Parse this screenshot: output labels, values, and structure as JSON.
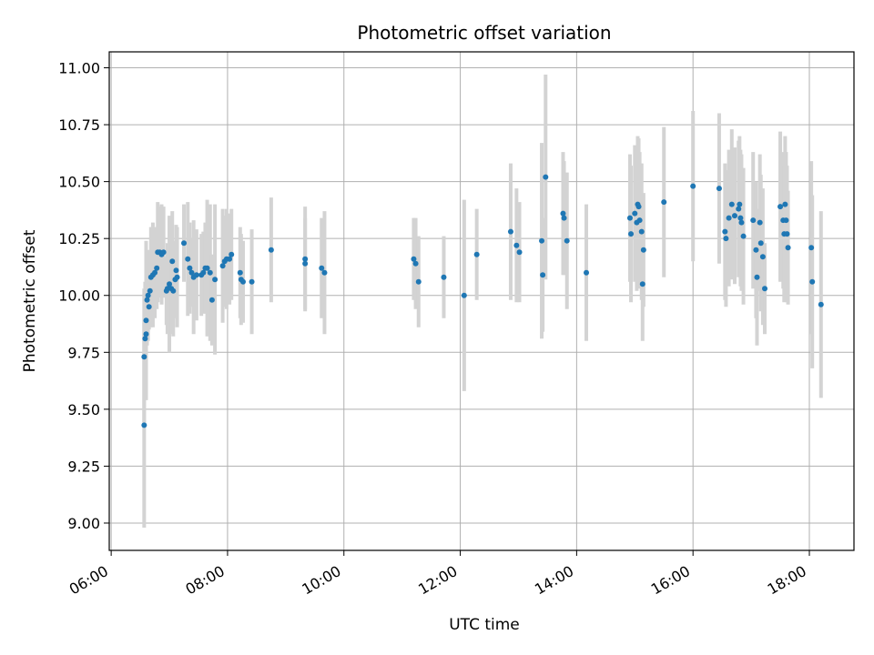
{
  "chart_data": {
    "type": "scatter",
    "title": "Photometric offset variation",
    "xlabel": "UTC time",
    "ylabel": "Photometric offset",
    "xlim": [
      "05:58",
      "18:46"
    ],
    "ylim": [
      8.88,
      11.07
    ],
    "x_ticks": [
      "06:00",
      "08:00",
      "10:00",
      "12:00",
      "14:00",
      "16:00",
      "18:00"
    ],
    "y_ticks": [
      "9.00",
      "9.25",
      "9.50",
      "9.75",
      "10.00",
      "10.25",
      "10.50",
      "10.75",
      "11.00"
    ],
    "grid": true,
    "colors": {
      "point": "#1f77b4",
      "errorbar": "#d3d3d3",
      "grid": "#b0b0b0"
    },
    "series": [
      {
        "points": [
          {
            "x": "06:34",
            "y": 9.43,
            "err": 0.45
          },
          {
            "x": "06:34",
            "y": 9.73,
            "err": 0.3
          },
          {
            "x": "06:35",
            "y": 9.81,
            "err": 0.25
          },
          {
            "x": "06:36",
            "y": 9.83,
            "err": 0.2
          },
          {
            "x": "06:36",
            "y": 9.89,
            "err": 0.35
          },
          {
            "x": "06:37",
            "y": 9.98,
            "err": 0.2
          },
          {
            "x": "06:38",
            "y": 10.0,
            "err": 0.2
          },
          {
            "x": "06:39",
            "y": 9.95,
            "err": 0.1
          },
          {
            "x": "06:40",
            "y": 10.02,
            "err": 0.15
          },
          {
            "x": "06:41",
            "y": 10.08,
            "err": 0.22
          },
          {
            "x": "06:43",
            "y": 10.09,
            "err": 0.23
          },
          {
            "x": "06:45",
            "y": 10.1,
            "err": 0.2
          },
          {
            "x": "06:47",
            "y": 10.12,
            "err": 0.18
          },
          {
            "x": "06:48",
            "y": 10.19,
            "err": 0.22
          },
          {
            "x": "06:50",
            "y": 10.19,
            "err": 0.2
          },
          {
            "x": "06:52",
            "y": 10.18,
            "err": 0.22
          },
          {
            "x": "06:54",
            "y": 10.19,
            "err": 0.2
          },
          {
            "x": "06:57",
            "y": 10.02,
            "err": 0.15
          },
          {
            "x": "06:58",
            "y": 10.03,
            "err": 0.2
          },
          {
            "x": "07:00",
            "y": 10.05,
            "err": 0.3
          },
          {
            "x": "07:02",
            "y": 10.03,
            "err": 0.2
          },
          {
            "x": "07:03",
            "y": 10.15,
            "err": 0.22
          },
          {
            "x": "07:04",
            "y": 10.02,
            "err": 0.2
          },
          {
            "x": "07:06",
            "y": 10.07,
            "err": 0.17
          },
          {
            "x": "07:07",
            "y": 10.11,
            "err": 0.2
          },
          {
            "x": "07:08",
            "y": 10.08,
            "err": 0.22
          },
          {
            "x": "07:15",
            "y": 10.23,
            "err": 0.17
          },
          {
            "x": "07:19",
            "y": 10.16,
            "err": 0.25
          },
          {
            "x": "07:21",
            "y": 10.12,
            "err": 0.2
          },
          {
            "x": "07:23",
            "y": 10.1,
            "err": 0.15
          },
          {
            "x": "07:25",
            "y": 10.08,
            "err": 0.25
          },
          {
            "x": "07:28",
            "y": 10.09,
            "err": 0.2
          },
          {
            "x": "07:33",
            "y": 10.09,
            "err": 0.18
          },
          {
            "x": "07:35",
            "y": 10.1,
            "err": 0.18
          },
          {
            "x": "07:37",
            "y": 10.12,
            "err": 0.2
          },
          {
            "x": "07:39",
            "y": 10.12,
            "err": 0.3
          },
          {
            "x": "07:42",
            "y": 10.1,
            "err": 0.3
          },
          {
            "x": "07:44",
            "y": 9.98,
            "err": 0.2
          },
          {
            "x": "07:47",
            "y": 10.07,
            "err": 0.33
          },
          {
            "x": "07:55",
            "y": 10.13,
            "err": 0.25
          },
          {
            "x": "07:57",
            "y": 10.15,
            "err": 0.2
          },
          {
            "x": "07:59",
            "y": 10.16,
            "err": 0.22
          },
          {
            "x": "08:02",
            "y": 10.16,
            "err": 0.2
          },
          {
            "x": "08:04",
            "y": 10.18,
            "err": 0.2
          },
          {
            "x": "08:13",
            "y": 10.1,
            "err": 0.2
          },
          {
            "x": "08:14",
            "y": 10.07,
            "err": 0.2
          },
          {
            "x": "08:16",
            "y": 10.06,
            "err": 0.18
          },
          {
            "x": "08:25",
            "y": 10.06,
            "err": 0.23
          },
          {
            "x": "08:45",
            "y": 10.2,
            "err": 0.23
          },
          {
            "x": "09:20",
            "y": 10.16,
            "err": 0.23
          },
          {
            "x": "09:20",
            "y": 10.14,
            "err": 0.2
          },
          {
            "x": "09:37",
            "y": 10.12,
            "err": 0.22
          },
          {
            "x": "09:40",
            "y": 10.1,
            "err": 0.27
          },
          {
            "x": "11:12",
            "y": 10.16,
            "err": 0.18
          },
          {
            "x": "11:14",
            "y": 10.14,
            "err": 0.2
          },
          {
            "x": "11:17",
            "y": 10.06,
            "err": 0.2
          },
          {
            "x": "11:43",
            "y": 10.08,
            "err": 0.18
          },
          {
            "x": "12:04",
            "y": 10.0,
            "err": 0.42
          },
          {
            "x": "12:17",
            "y": 10.18,
            "err": 0.2
          },
          {
            "x": "12:52",
            "y": 10.28,
            "err": 0.3
          },
          {
            "x": "12:58",
            "y": 10.22,
            "err": 0.25
          },
          {
            "x": "13:01",
            "y": 10.19,
            "err": 0.22
          },
          {
            "x": "13:24",
            "y": 10.24,
            "err": 0.43
          },
          {
            "x": "13:25",
            "y": 10.09,
            "err": 0.25
          },
          {
            "x": "13:28",
            "y": 10.52,
            "err": 0.45
          },
          {
            "x": "13:46",
            "y": 10.36,
            "err": 0.27
          },
          {
            "x": "13:47",
            "y": 10.34,
            "err": 0.25
          },
          {
            "x": "13:50",
            "y": 10.24,
            "err": 0.3
          },
          {
            "x": "14:10",
            "y": 10.1,
            "err": 0.3
          },
          {
            "x": "14:55",
            "y": 10.34,
            "err": 0.28
          },
          {
            "x": "14:56",
            "y": 10.27,
            "err": 0.3
          },
          {
            "x": "15:00",
            "y": 10.36,
            "err": 0.3
          },
          {
            "x": "15:02",
            "y": 10.32,
            "err": 0.3
          },
          {
            "x": "15:03",
            "y": 10.4,
            "err": 0.3
          },
          {
            "x": "15:04",
            "y": 10.39,
            "err": 0.3
          },
          {
            "x": "15:05",
            "y": 10.33,
            "err": 0.3
          },
          {
            "x": "15:07",
            "y": 10.28,
            "err": 0.3
          },
          {
            "x": "15:08",
            "y": 10.05,
            "err": 0.25
          },
          {
            "x": "15:09",
            "y": 10.2,
            "err": 0.25
          },
          {
            "x": "15:30",
            "y": 10.41,
            "err": 0.33
          },
          {
            "x": "16:00",
            "y": 10.48,
            "err": 0.33
          },
          {
            "x": "16:27",
            "y": 10.47,
            "err": 0.33
          },
          {
            "x": "16:33",
            "y": 10.28,
            "err": 0.3
          },
          {
            "x": "16:34",
            "y": 10.25,
            "err": 0.3
          },
          {
            "x": "16:37",
            "y": 10.34,
            "err": 0.3
          },
          {
            "x": "16:40",
            "y": 10.4,
            "err": 0.33
          },
          {
            "x": "16:43",
            "y": 10.35,
            "err": 0.3
          },
          {
            "x": "16:47",
            "y": 10.38,
            "err": 0.3
          },
          {
            "x": "16:48",
            "y": 10.4,
            "err": 0.3
          },
          {
            "x": "16:49",
            "y": 10.34,
            "err": 0.3
          },
          {
            "x": "16:50",
            "y": 10.32,
            "err": 0.3
          },
          {
            "x": "16:52",
            "y": 10.26,
            "err": 0.3
          },
          {
            "x": "17:02",
            "y": 10.33,
            "err": 0.3
          },
          {
            "x": "17:05",
            "y": 10.2,
            "err": 0.3
          },
          {
            "x": "17:06",
            "y": 10.08,
            "err": 0.3
          },
          {
            "x": "17:09",
            "y": 10.32,
            "err": 0.3
          },
          {
            "x": "17:10",
            "y": 10.23,
            "err": 0.3
          },
          {
            "x": "17:12",
            "y": 10.17,
            "err": 0.3
          },
          {
            "x": "17:14",
            "y": 10.03,
            "err": 0.2
          },
          {
            "x": "17:30",
            "y": 10.39,
            "err": 0.33
          },
          {
            "x": "17:33",
            "y": 10.33,
            "err": 0.3
          },
          {
            "x": "17:34",
            "y": 10.27,
            "err": 0.3
          },
          {
            "x": "17:35",
            "y": 10.4,
            "err": 0.3
          },
          {
            "x": "17:36",
            "y": 10.33,
            "err": 0.3
          },
          {
            "x": "17:37",
            "y": 10.27,
            "err": 0.3
          },
          {
            "x": "17:38",
            "y": 10.21,
            "err": 0.25
          },
          {
            "x": "18:02",
            "y": 10.21,
            "err": 0.38
          },
          {
            "x": "18:03",
            "y": 10.06,
            "err": 0.38
          },
          {
            "x": "18:12",
            "y": 9.96,
            "err": 0.41
          }
        ]
      }
    ]
  }
}
